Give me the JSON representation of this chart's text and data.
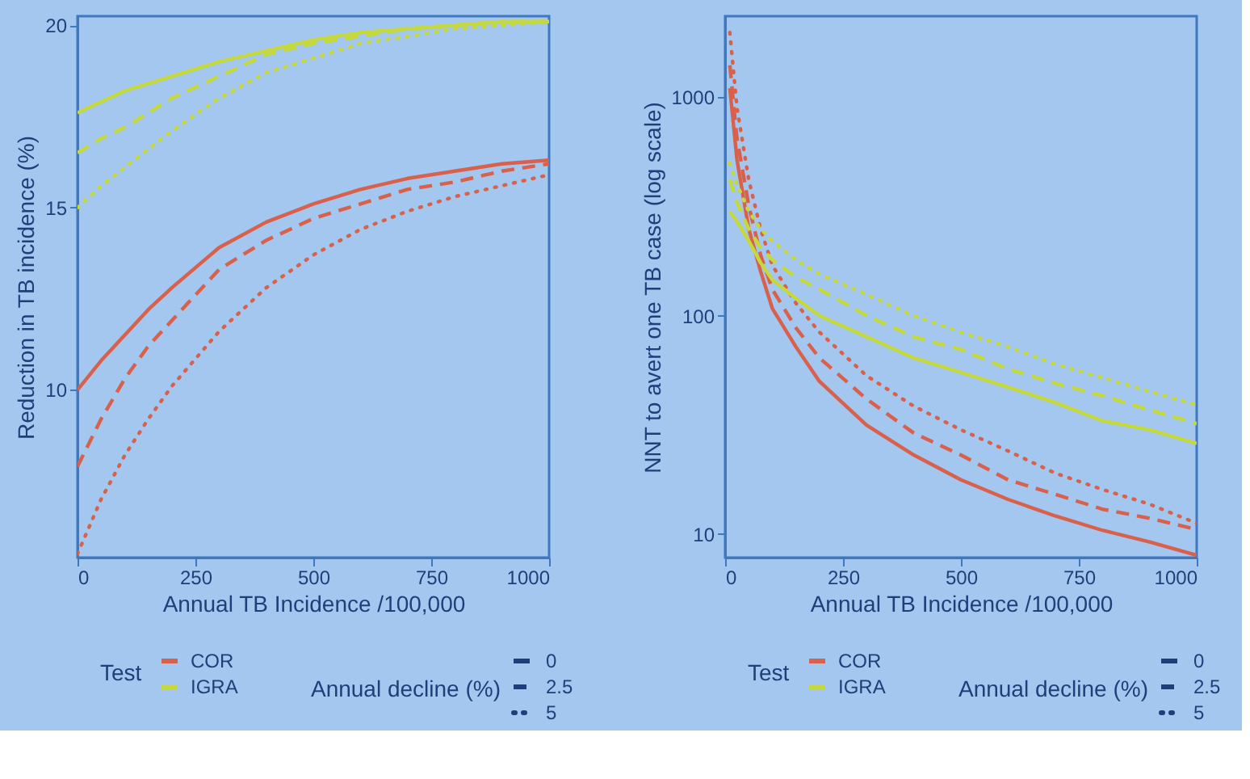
{
  "chart_data": [
    {
      "type": "line",
      "xlabel": "Annual TB Incidence /100,000",
      "ylabel": "Reduction in TB incidence (%)",
      "xlim": [
        0,
        1000
      ],
      "xticks": [
        0,
        250,
        500,
        750,
        1000
      ],
      "ylim": [
        5.4,
        20.25
      ],
      "yticks": [
        10,
        15,
        20
      ],
      "grid": false,
      "legend": "bottom",
      "legend_title": [
        "Test",
        "Annual decline (%)"
      ],
      "annotations": [
        "0",
        "2.5",
        "5"
      ],
      "x": [
        0,
        50,
        100,
        150,
        200,
        300,
        400,
        500,
        600,
        700,
        800,
        900,
        1000
      ],
      "series": [
        {
          "name": "COR",
          "color": "#d9604a",
          "line_style": "solid",
          "values": [
            10.0,
            10.8,
            11.5,
            12.2,
            12.8,
            13.9,
            14.6,
            15.1,
            15.5,
            15.8,
            16.0,
            16.2,
            16.3
          ]
        },
        {
          "color": "#d9604a",
          "line_style": "dashed",
          "values": [
            7.9,
            9.2,
            10.3,
            11.2,
            11.9,
            13.3,
            14.1,
            14.7,
            15.1,
            15.5,
            15.7,
            16.0,
            16.2
          ]
        },
        {
          "color": "#d9604a",
          "line_style": "dotted",
          "values": [
            5.5,
            7.0,
            8.2,
            9.2,
            10.1,
            11.6,
            12.8,
            13.7,
            14.4,
            14.9,
            15.3,
            15.6,
            15.9
          ]
        },
        {
          "name": "IGRA",
          "color": "#c5d93a",
          "line_style": "solid",
          "values": [
            17.6,
            17.9,
            18.2,
            18.4,
            18.6,
            19.0,
            19.3,
            19.6,
            19.8,
            19.9,
            20.0,
            20.1,
            20.1
          ]
        },
        {
          "color": "#c5d93a",
          "line_style": "dashed",
          "values": [
            16.5,
            16.9,
            17.2,
            17.6,
            18.0,
            18.6,
            19.2,
            19.5,
            19.7,
            19.9,
            20.0,
            20.1,
            20.1
          ]
        },
        {
          "color": "#c5d93a",
          "line_style": "dotted",
          "values": [
            15.0,
            15.6,
            16.1,
            16.6,
            17.1,
            18.0,
            18.7,
            19.1,
            19.5,
            19.7,
            19.9,
            20.0,
            20.1
          ]
        }
      ]
    },
    {
      "type": "line",
      "xlabel": "Annual TB Incidence /100,000",
      "ylabel": "NNT to avert one TB case (log scale)",
      "log": "y",
      "xlim": [
        0,
        1000
      ],
      "xticks": [
        0,
        250,
        500,
        750,
        1000
      ],
      "ylim": [
        7.8,
        2350
      ],
      "yticks": [
        10,
        100,
        1000
      ],
      "grid": false,
      "legend": "bottom",
      "legend_title": [
        "Test",
        "Annual decline (%)"
      ],
      "annotations": [
        "0",
        "2.5",
        "5"
      ],
      "x": [
        10,
        25,
        50,
        75,
        100,
        150,
        200,
        300,
        400,
        500,
        600,
        700,
        800,
        900,
        1000
      ],
      "series": [
        {
          "name": "COR",
          "color": "#d9604a",
          "line_style": "solid",
          "values": [
            1100,
            520,
            250,
            160,
            108,
            72,
            50,
            31.5,
            23,
            17.7,
            14.4,
            12.1,
            10.4,
            9.2,
            8
          ]
        },
        {
          "color": "#d9604a",
          "line_style": "dashed",
          "values": [
            1400,
            650,
            320,
            190,
            132,
            88,
            64,
            41.5,
            29,
            23,
            17.7,
            15.2,
            13,
            11.8,
            10.5
          ]
        },
        {
          "color": "#d9604a",
          "line_style": "dotted",
          "values": [
            1980,
            900,
            420,
            250,
            170,
            114,
            84,
            53,
            38.5,
            30,
            24,
            19,
            16,
            13.7,
            11.2
          ]
        },
        {
          "name": "IGRA",
          "color": "#c5d93a",
          "line_style": "solid",
          "values": [
            300,
            270,
            220,
            175,
            146,
            120,
            100,
            80,
            64,
            55,
            47,
            40,
            33,
            30,
            26
          ]
        },
        {
          "color": "#c5d93a",
          "line_style": "dashed",
          "values": [
            420,
            330,
            250,
            205,
            180,
            150,
            132,
            100,
            80,
            70,
            57,
            49,
            43,
            37,
            32
          ]
        },
        {
          "color": "#c5d93a",
          "line_style": "dotted",
          "values": [
            500,
            400,
            300,
            250,
            220,
            180,
            155,
            125,
            100,
            84,
            72,
            60,
            52,
            45,
            39
          ]
        }
      ]
    }
  ]
}
